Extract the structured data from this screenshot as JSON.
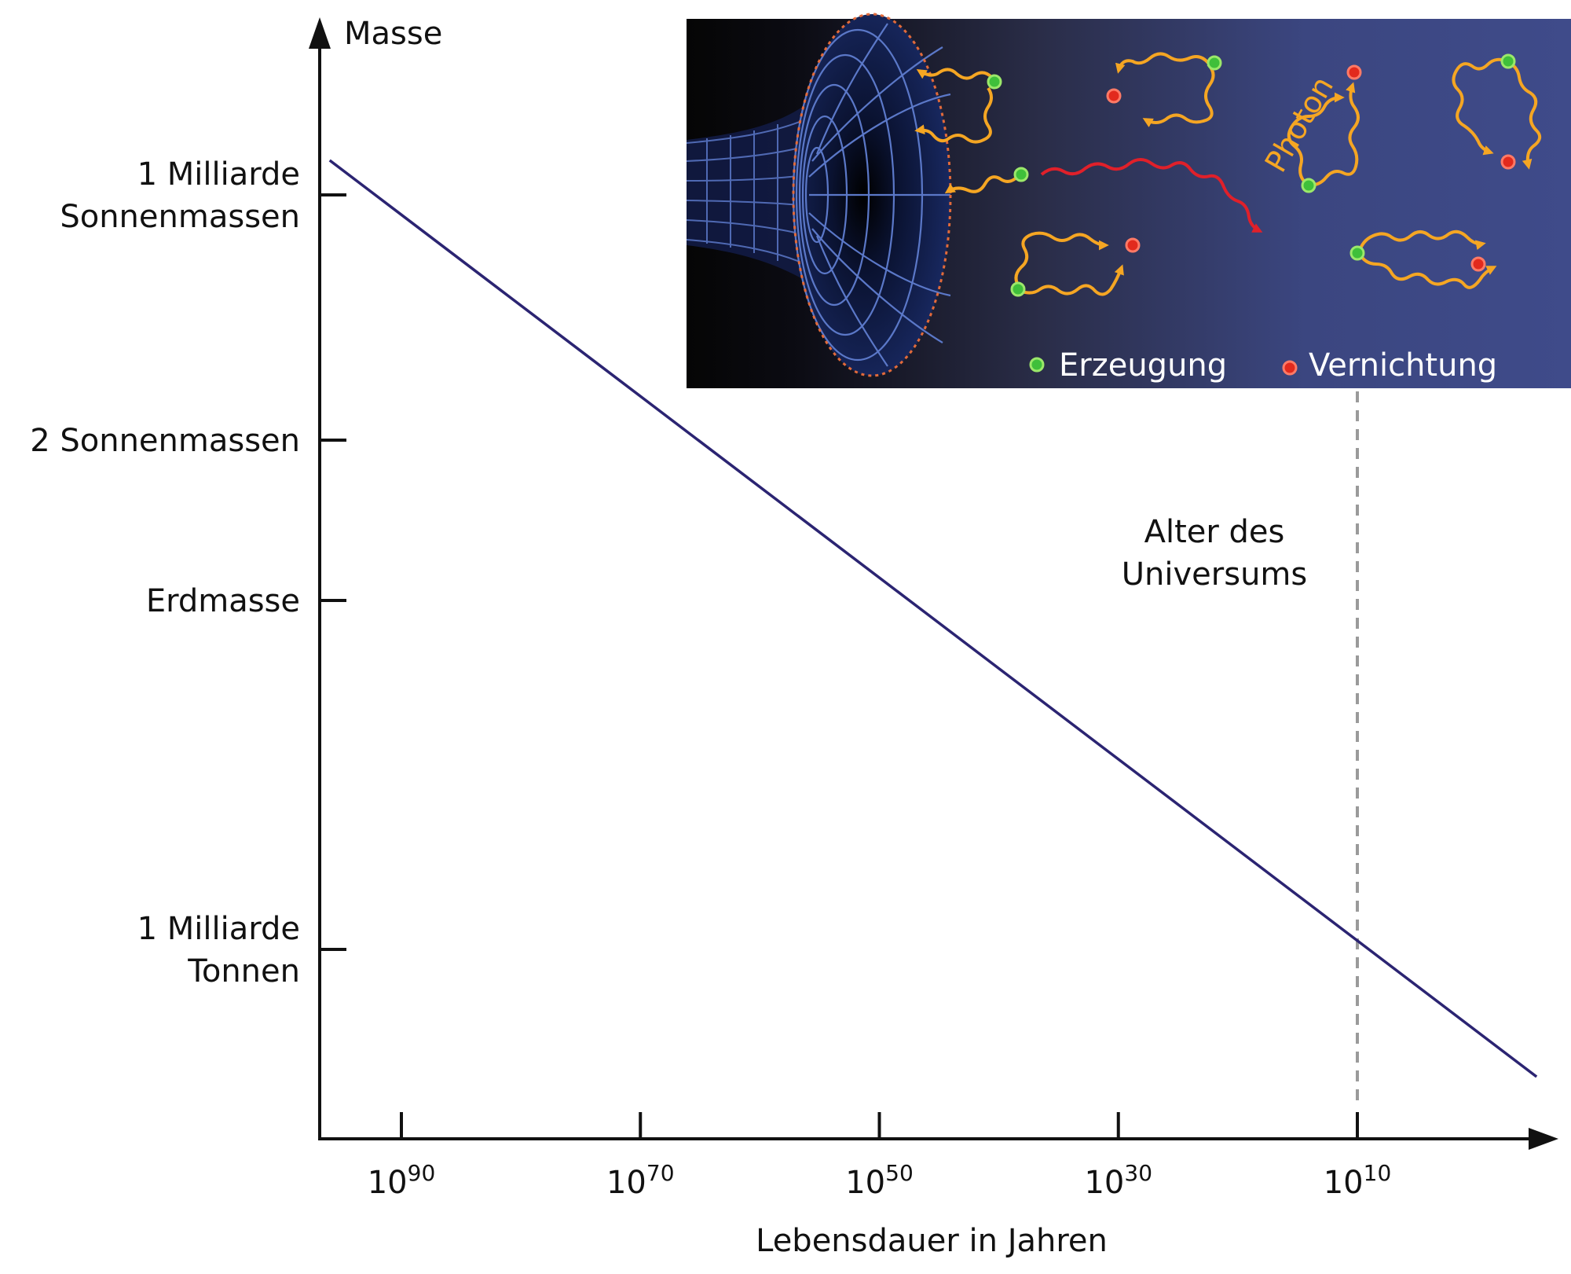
{
  "chart_data": {
    "type": "line",
    "xlabel": "Lebensdauer in Jahren",
    "ylabel": "Masse",
    "x_ticks": [
      {
        "mantissa": "10",
        "exponent": "90",
        "value": 90
      },
      {
        "mantissa": "10",
        "exponent": "70",
        "value": 70
      },
      {
        "mantissa": "10",
        "exponent": "50",
        "value": 50
      },
      {
        "mantissa": "10",
        "exponent": "30",
        "value": 30
      },
      {
        "mantissa": "10",
        "exponent": "10",
        "value": 10
      }
    ],
    "x_axis": {
      "scale": "log",
      "direction": "decreasing to the right",
      "range_exponent": [
        97,
        -5
      ]
    },
    "y_ticks": [
      {
        "lines": [
          "1 Milliarde",
          "Sonnenmassen"
        ]
      },
      {
        "lines": [
          "2 Sonnenmassen"
        ]
      },
      {
        "lines": [
          "Erdmasse"
        ]
      },
      {
        "lines": [
          "1 Milliarde",
          "Tonnen"
        ]
      }
    ],
    "series": [
      {
        "color": "#2b2472",
        "points": [
          {
            "x_exponent": 96,
            "mass": "1 Milliarde Sonnenmassen"
          },
          {
            "x_exponent": -5,
            "mass": "< 1 Milliarde Tonnen"
          }
        ]
      }
    ],
    "annotation": {
      "lines": [
        "Alter des",
        "Universums"
      ],
      "x_exponent": 10,
      "style": "dashed vertical line"
    },
    "grid": false
  },
  "inset": {
    "photon_label": "Photon",
    "legend": [
      {
        "label": "Erzeugung",
        "color": "#3fbf3a"
      },
      {
        "label": "Vernichtung",
        "color": "#e22a1d"
      }
    ],
    "colors": {
      "background_start": "#050505",
      "background_end": "#3d4a88",
      "grid": "#5b78c8",
      "horizon": "#e26a3a",
      "photon": "#f5a623",
      "hawking": "#e0202a"
    }
  }
}
